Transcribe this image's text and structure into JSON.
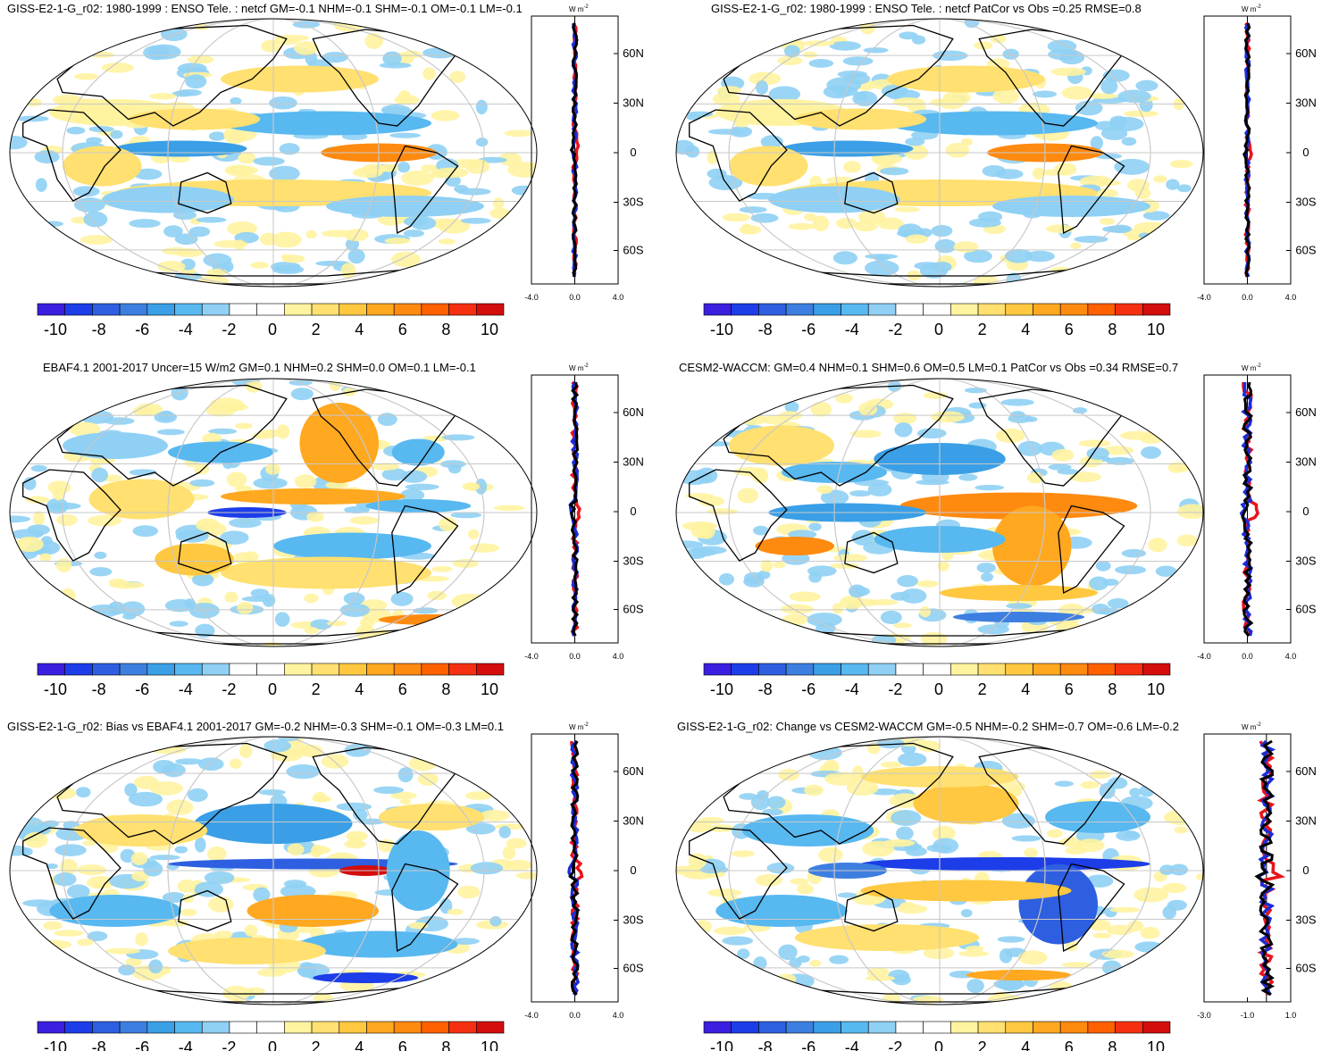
{
  "figure": {
    "colorbar_ticks": [
      "-10",
      "-8",
      "-6",
      "-4",
      "-2",
      "0",
      "2",
      "4",
      "6",
      "8",
      "10"
    ],
    "colorbar_colors": [
      "#3a1fe0",
      "#1c3de8",
      "#2e5fe0",
      "#3d7fe0",
      "#3a9fe6",
      "#58b8f0",
      "#8fd0f4",
      "#ffffff",
      "#ffffff",
      "#fff3a0",
      "#ffe070",
      "#ffc840",
      "#ffa820",
      "#ff8a10",
      "#ff6000",
      "#f53010",
      "#d40d0d"
    ],
    "lat_ticks": [
      "60N",
      "30N",
      "0",
      "30S",
      "60S"
    ],
    "zonal_unit": "W m",
    "zonal_unit_sup": "-2",
    "line_colors": {
      "model": "#e8141c",
      "obs": "#1a2cd6",
      "diff": "#000000"
    }
  },
  "panels": [
    {
      "id": "p1",
      "title": "GISS-E2-1-G_r02: 1980-1999 : ENSO Tele. : netcf GM=-0.1 NHM=-0.1 SHM=-0.1 OM=-0.1 LM=-0.1",
      "xticks": [
        "-4.0",
        "0.0",
        "4.0"
      ]
    },
    {
      "id": "p2",
      "title": "GISS-E2-1-G_r02: 1980-1999 : ENSO Tele. : netcf PatCor vs Obs =0.25 RMSE=0.8",
      "xticks": [
        "-4.0",
        "0.0",
        "4.0"
      ]
    },
    {
      "id": "p3",
      "title": "EBAF4.1 2001-2017 Uncer=15 W/m2 GM=0.1 NHM=0.2 SHM=0.0 OM=0.1 LM=-0.1",
      "xticks": [
        "-4.0",
        "0.0",
        "4.0"
      ]
    },
    {
      "id": "p4",
      "title": "CESM2-WACCM: GM=0.4 NHM=0.1 SHM=0.6 OM=0.5 LM=0.1 PatCor vs Obs =0.34 RMSE=0.7",
      "xticks": [
        "-4.0",
        "0.0",
        "4.0"
      ]
    },
    {
      "id": "p5",
      "title": "GISS-E2-1-G_r02: Bias vs EBAF4.1 2001-2017 GM=-0.2 NHM=-0.3 SHM=-0.1 OM=-0.3 LM=0.1",
      "xticks": [
        "-4.0",
        "0.0",
        "4.0"
      ]
    },
    {
      "id": "p6",
      "title": "GISS-E2-1-G_r02: Change vs CESM2-WACCM GM=-0.5 NHM=-0.2 SHM=-0.7 OM=-0.6 LM=-0.2",
      "xticks": [
        "-3.0",
        "-1.0",
        "1.0"
      ]
    }
  ],
  "chart_data": [
    {
      "type": "heatmap",
      "title": "GISS-E2-1-G_r02: 1980-1999 : ENSO Tele. : netcf GM=-0.1 NHM=-0.1 SHM=-0.1 OM=-0.1 LM=-0.1",
      "colorbar_range": [
        -10,
        10
      ],
      "zonal_mean": {
        "xlim": [
          -4,
          4
        ],
        "y": [
          "60N",
          "30N",
          "0",
          "30S",
          "60S"
        ]
      }
    },
    {
      "type": "heatmap",
      "title": "GISS-E2-1-G_r02: 1980-1999 : ENSO Tele. : netcf PatCor vs Obs =0.25 RMSE=0.8",
      "colorbar_range": [
        -10,
        10
      ],
      "zonal_mean": {
        "xlim": [
          -4,
          4
        ],
        "y": [
          "60N",
          "30N",
          "0",
          "30S",
          "60S"
        ]
      }
    },
    {
      "type": "heatmap",
      "title": "EBAF4.1 2001-2017 Uncer=15 W/m2 GM=0.1 NHM=0.2 SHM=0.0 OM=0.1 LM=-0.1",
      "colorbar_range": [
        -10,
        10
      ],
      "zonal_mean": {
        "xlim": [
          -4,
          4
        ],
        "y": [
          "60N",
          "30N",
          "0",
          "30S",
          "60S"
        ]
      }
    },
    {
      "type": "heatmap",
      "title": "CESM2-WACCM: GM=0.4 NHM=0.1 SHM=0.6 OM=0.5 LM=0.1 PatCor vs Obs =0.34 RMSE=0.7",
      "colorbar_range": [
        -10,
        10
      ],
      "zonal_mean": {
        "xlim": [
          -4,
          4
        ],
        "y": [
          "60N",
          "30N",
          "0",
          "30S",
          "60S"
        ]
      }
    },
    {
      "type": "heatmap",
      "title": "GISS-E2-1-G_r02: Bias vs EBAF4.1 2001-2017 GM=-0.2 NHM=-0.3 SHM=-0.1 OM=-0.3 LM=0.1",
      "colorbar_range": [
        -10,
        10
      ],
      "zonal_mean": {
        "xlim": [
          -4,
          4
        ],
        "y": [
          "60N",
          "30N",
          "0",
          "30S",
          "60S"
        ]
      }
    },
    {
      "type": "heatmap",
      "title": "GISS-E2-1-G_r02: Change vs CESM2-WACCM GM=-0.5 NHM=-0.2 SHM=-0.7 OM=-0.6 LM=-0.2",
      "colorbar_range": [
        -10,
        10
      ],
      "zonal_mean": {
        "xlim": [
          -3,
          1.2
        ],
        "y": [
          "60N",
          "30N",
          "0",
          "30S",
          "60S"
        ]
      }
    }
  ]
}
